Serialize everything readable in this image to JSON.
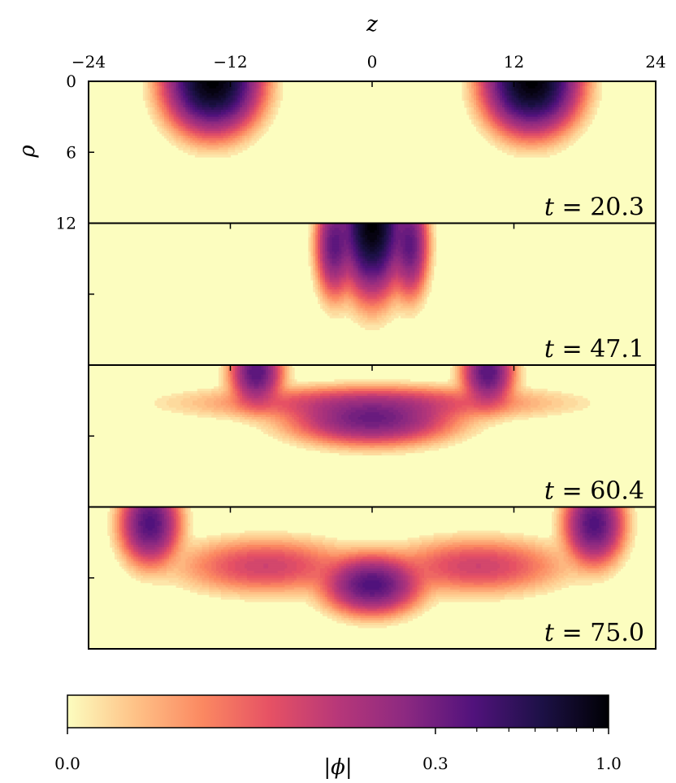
{
  "chart_data": {
    "type": "heatmap",
    "xlabel": "z",
    "ylabel": "ρ",
    "xlim": [
      -24,
      24
    ],
    "ylim": [
      0,
      12
    ],
    "x_ticks": [
      "−24",
      "−12",
      "0",
      "12",
      "24"
    ],
    "y_ticks": [
      "0",
      "6",
      "12"
    ],
    "colormap": "magma",
    "colorbar": {
      "label": "|ϕ|",
      "scale": "log-like",
      "ticks": [
        "0.0",
        "0.3",
        "1.0"
      ],
      "colors": [
        "#fcfdbf",
        "#fec287",
        "#fb8861",
        "#e65164",
        "#b73779",
        "#8c2981",
        "#51127c",
        "#1d1147",
        "#000004"
      ]
    },
    "panels": [
      {
        "time_label": "t = 20.3",
        "t_var": "t",
        "t_value": "= 20.3",
        "blobs": [
          {
            "z": -13.5,
            "rho": 0.0,
            "amplitude": 1.0,
            "width_z": 2.4,
            "width_rho": 2.6
          },
          {
            "z": 13.5,
            "rho": 0.0,
            "amplitude": 1.0,
            "width_z": 2.4,
            "width_rho": 2.6
          }
        ]
      },
      {
        "time_label": "t = 47.1",
        "t_var": "t",
        "t_value": "= 47.1",
        "blobs": [
          {
            "z": 0.0,
            "rho": 0.0,
            "amplitude": 1.0,
            "width_z": 1.6,
            "width_rho": 3.6
          },
          {
            "z": -3.2,
            "rho": 1.8,
            "amplitude": 0.25,
            "width_z": 1.0,
            "width_rho": 2.8
          },
          {
            "z": 3.2,
            "rho": 1.8,
            "amplitude": 0.25,
            "width_z": 1.0,
            "width_rho": 2.8
          }
        ]
      },
      {
        "time_label": "t = 60.4",
        "t_var": "t",
        "t_value": "= 60.4",
        "blobs": [
          {
            "z": -9.8,
            "rho": 0.6,
            "amplitude": 0.28,
            "width_z": 1.4,
            "width_rho": 1.8
          },
          {
            "z": 9.8,
            "rho": 0.6,
            "amplitude": 0.28,
            "width_z": 1.4,
            "width_rho": 1.8
          },
          {
            "z": 0.0,
            "rho": 4.6,
            "amplitude": 0.22,
            "width_z": 4.5,
            "width_rho": 1.4
          },
          {
            "z": 0.0,
            "rho": 3.2,
            "amplitude": 0.06,
            "width_z": 10.0,
            "width_rho": 1.0
          }
        ]
      },
      {
        "time_label": "t = 75.0",
        "t_var": "t",
        "t_value": "= 75.0",
        "blobs": [
          {
            "z": -18.8,
            "rho": 1.4,
            "amplitude": 0.3,
            "width_z": 1.6,
            "width_rho": 2.2
          },
          {
            "z": 18.8,
            "rho": 1.4,
            "amplitude": 0.3,
            "width_z": 1.6,
            "width_rho": 2.2
          },
          {
            "z": 0.0,
            "rho": 6.6,
            "amplitude": 0.3,
            "width_z": 2.6,
            "width_rho": 1.6
          },
          {
            "z": -9.0,
            "rho": 5.0,
            "amplitude": 0.06,
            "width_z": 5.0,
            "width_rho": 1.6
          },
          {
            "z": 9.0,
            "rho": 5.0,
            "amplitude": 0.06,
            "width_z": 5.0,
            "width_rho": 1.6
          }
        ]
      }
    ]
  }
}
